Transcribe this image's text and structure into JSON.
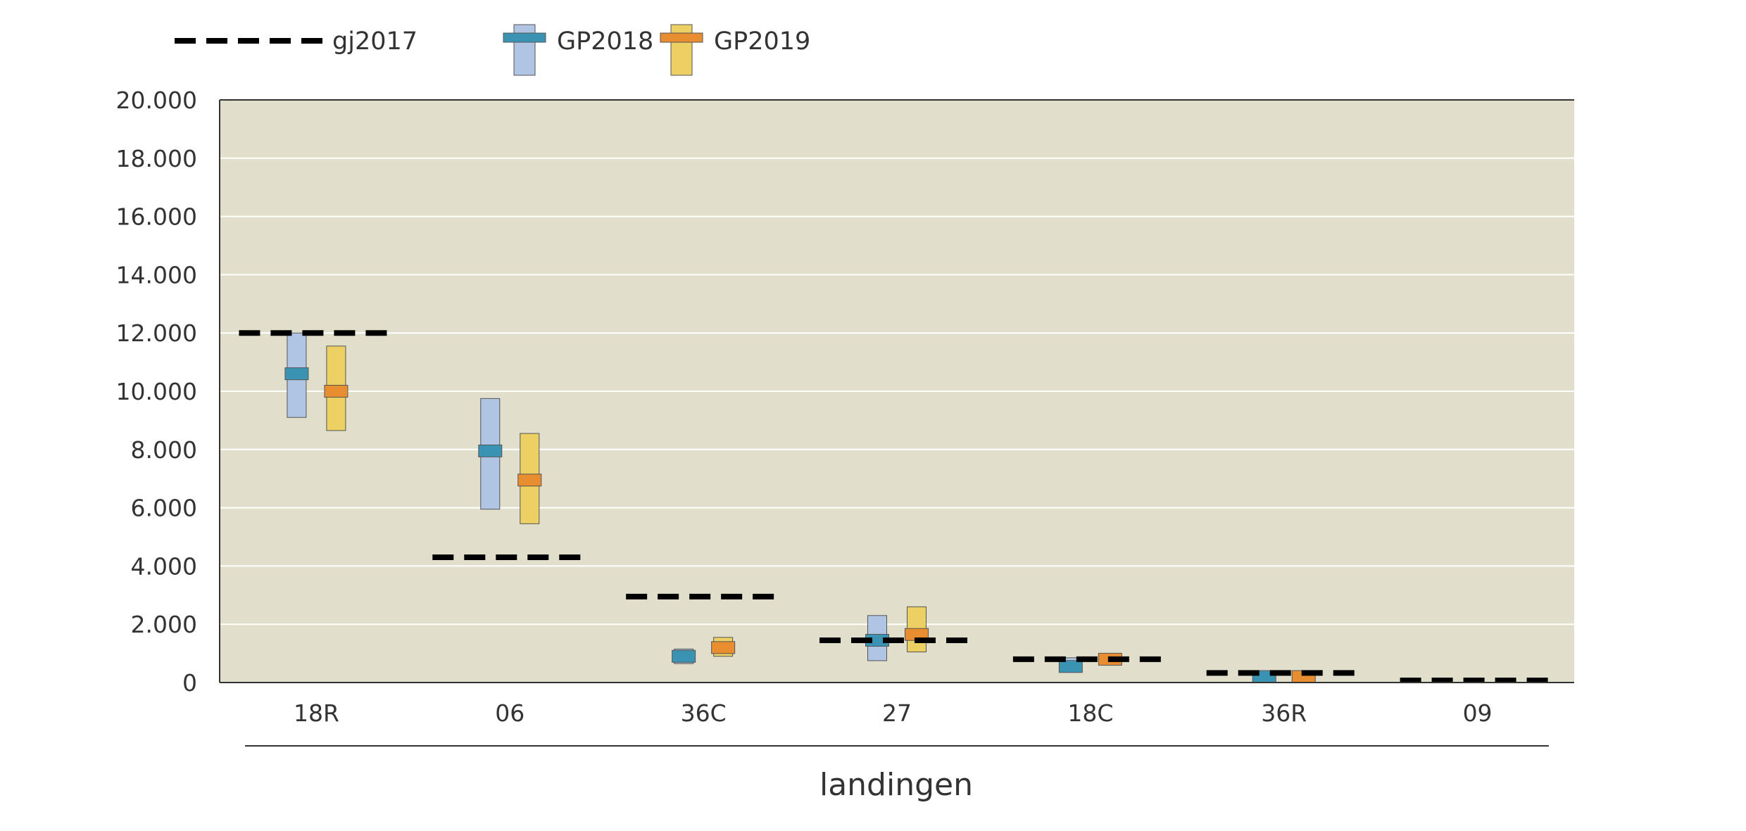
{
  "chart_data": {
    "type": "box",
    "categories": [
      "18R",
      "06",
      "36C",
      "27",
      "18C",
      "36R",
      "09"
    ],
    "xlabel": "landingen",
    "ylabel": "",
    "ylim": [
      0,
      20000
    ],
    "yticks": [
      0,
      2000,
      4000,
      6000,
      8000,
      10000,
      12000,
      14000,
      16000,
      18000,
      20000
    ],
    "ytick_labels": [
      "0",
      "2.000",
      "4.000",
      "6.000",
      "8.000",
      "10.000",
      "12.000",
      "14.000",
      "16.000",
      "18.000",
      "20.000"
    ],
    "grid": true,
    "legend_position": "top-left",
    "reference_series": {
      "name": "gj2017",
      "style": "dashed",
      "color": "#000000",
      "values": [
        12000,
        4300,
        2950,
        1450,
        800,
        330,
        20
      ]
    },
    "series": [
      {
        "name": "GP2018",
        "range_color": "#b0c4e4",
        "median_color": "#3a93b3",
        "low": [
          9100,
          5950,
          650,
          750,
          350,
          0,
          0
        ],
        "mid": [
          10600,
          7950,
          900,
          1450,
          550,
          150,
          0
        ],
        "high": [
          12000,
          9750,
          1150,
          2300,
          850,
          350,
          0
        ]
      },
      {
        "name": "GP2019",
        "range_color": "#ecd063",
        "median_color": "#e88d30",
        "low": [
          8650,
          5450,
          900,
          1050,
          600,
          0,
          0
        ],
        "mid": [
          10000,
          6950,
          1200,
          1650,
          800,
          200,
          0
        ],
        "high": [
          11550,
          8550,
          1550,
          2600,
          1000,
          400,
          0
        ]
      }
    ],
    "colors": {
      "plot_background": "#e1dfcc",
      "gridline": "#ffffff",
      "axis": "#333333"
    }
  }
}
